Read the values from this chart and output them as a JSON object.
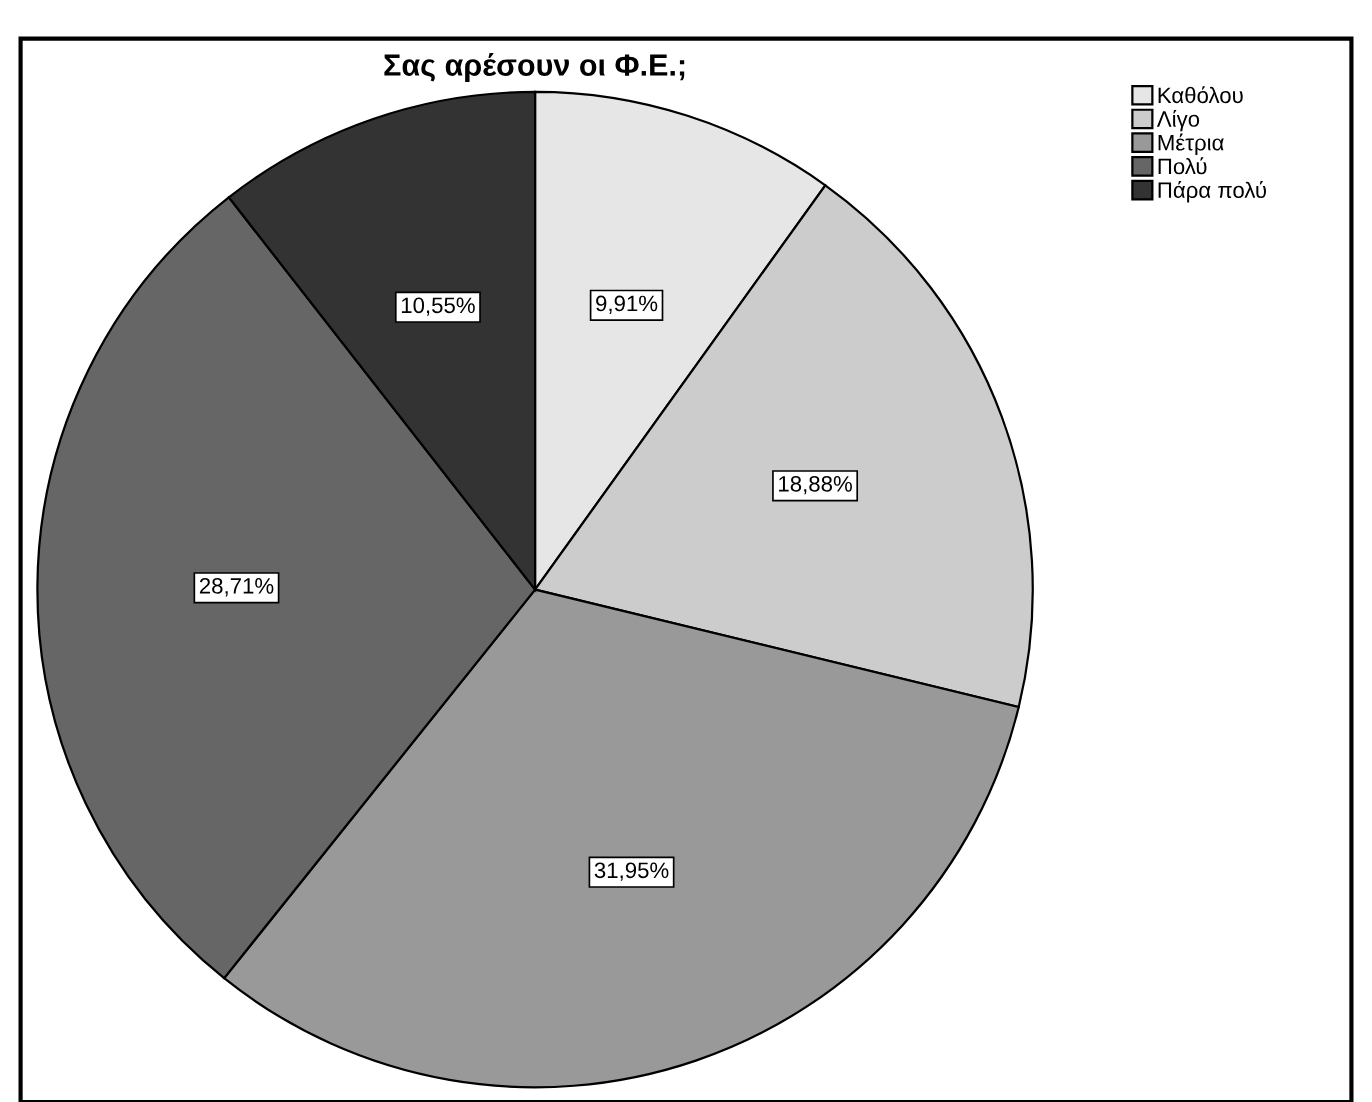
{
  "chart_data": {
    "type": "pie",
    "title": "Σας αρέσουν οι Φ.Ε.;",
    "categories": [
      "Καθόλου",
      "Λίγο",
      "Μέτρια",
      "Πολύ",
      "Πάρα πολύ"
    ],
    "values": [
      9.91,
      18.88,
      31.95,
      28.71,
      10.55
    ],
    "colors": [
      "#e6e6e6",
      "#cccccc",
      "#999999",
      "#666666",
      "#333333"
    ],
    "value_labels": [
      "9,91%",
      "18,88%",
      "31,95%",
      "28,71%",
      "10,55%"
    ],
    "legend": "top right"
  }
}
